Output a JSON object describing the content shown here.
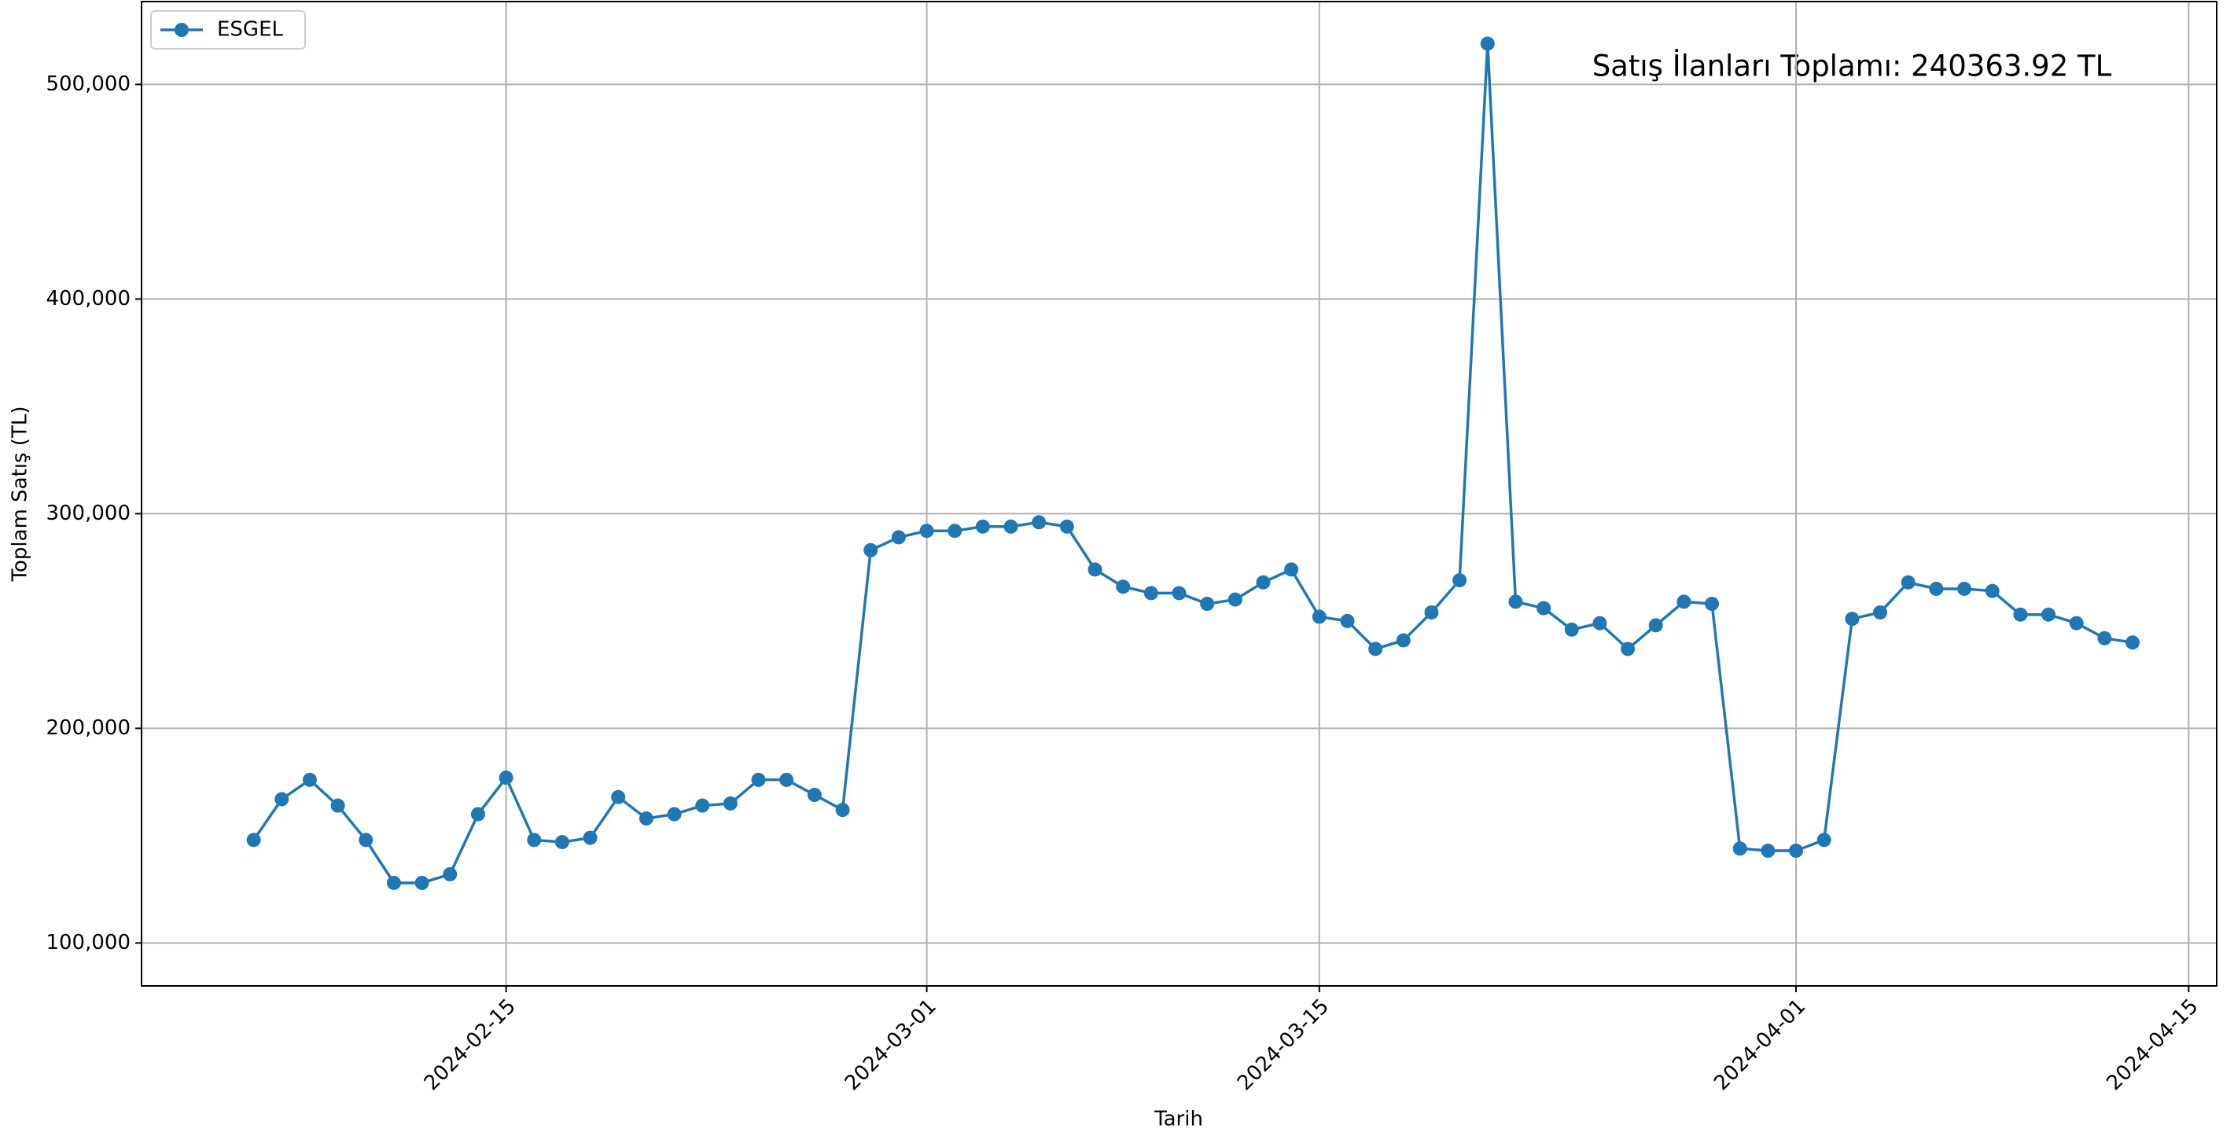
{
  "chart_data": {
    "type": "line",
    "annotation": "Satış İlanları Toplamı: 240363.92 TL",
    "xlabel": "Tarih",
    "ylabel": "Toplam Satış (TL)",
    "x": [
      "2024-02-06",
      "2024-02-07",
      "2024-02-08",
      "2024-02-09",
      "2024-02-10",
      "2024-02-11",
      "2024-02-12",
      "2024-02-13",
      "2024-02-14",
      "2024-02-15",
      "2024-02-16",
      "2024-02-17",
      "2024-02-18",
      "2024-02-19",
      "2024-02-20",
      "2024-02-21",
      "2024-02-22",
      "2024-02-23",
      "2024-02-24",
      "2024-02-25",
      "2024-02-26",
      "2024-02-27",
      "2024-02-28",
      "2024-02-29",
      "2024-03-01",
      "2024-03-02",
      "2024-03-03",
      "2024-03-04",
      "2024-03-05",
      "2024-03-06",
      "2024-03-07",
      "2024-03-08",
      "2024-03-09",
      "2024-03-10",
      "2024-03-11",
      "2024-03-12",
      "2024-03-13",
      "2024-03-14",
      "2024-03-15",
      "2024-03-16",
      "2024-03-17",
      "2024-03-18",
      "2024-03-19",
      "2024-03-20",
      "2024-03-21",
      "2024-03-22",
      "2024-03-23",
      "2024-03-24",
      "2024-03-25",
      "2024-03-26",
      "2024-03-27",
      "2024-03-28",
      "2024-03-29",
      "2024-03-30",
      "2024-03-31",
      "2024-04-01",
      "2024-04-02",
      "2024-04-03",
      "2024-04-04",
      "2024-04-05",
      "2024-04-06",
      "2024-04-07",
      "2024-04-08",
      "2024-04-09",
      "2024-04-10",
      "2024-04-11",
      "2024-04-12",
      "2024-04-13"
    ],
    "series": [
      {
        "name": "ESGEL",
        "color": "#1f77b4",
        "values": [
          148000,
          167000,
          176000,
          164000,
          148000,
          128000,
          128000,
          132000,
          160000,
          177000,
          148000,
          147000,
          149000,
          168000,
          158000,
          160000,
          164000,
          165000,
          176000,
          176000,
          169000,
          162000,
          283000,
          289000,
          292000,
          292000,
          294000,
          294000,
          296000,
          294000,
          274000,
          266000,
          263000,
          263000,
          258000,
          260000,
          268000,
          274000,
          252000,
          250000,
          237000,
          241000,
          254000,
          269000,
          519000,
          259000,
          256000,
          246000,
          249000,
          237000,
          248000,
          259000,
          258000,
          144000,
          143000,
          143000,
          148000,
          251000,
          254000,
          268000,
          265000,
          265000,
          264000,
          253000,
          253000,
          249000,
          242000,
          240000
        ]
      }
    ],
    "xlim": [
      "2024-02-02",
      "2024-04-16"
    ],
    "xticks": [
      "2024-02-15",
      "2024-03-01",
      "2024-03-15",
      "2024-04-01",
      "2024-04-15"
    ],
    "ylim": [
      80000,
      538600
    ],
    "yticks": [
      {
        "value": 100000,
        "label": "100,000"
      },
      {
        "value": 200000,
        "label": "200,000"
      },
      {
        "value": 300000,
        "label": "300,000"
      },
      {
        "value": 400000,
        "label": "400,000"
      },
      {
        "value": 500000,
        "label": "500,000"
      }
    ],
    "grid": true,
    "legend": "upper left"
  }
}
